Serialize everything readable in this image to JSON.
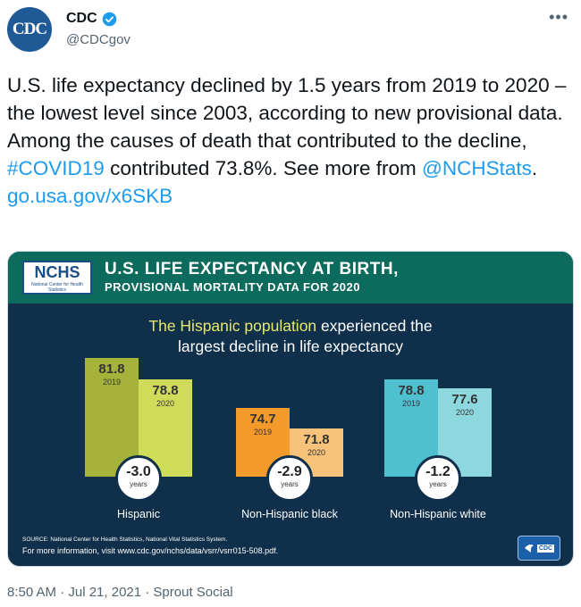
{
  "account": {
    "avatar_text": "CDC",
    "name": "CDC",
    "handle": "@CDCgov",
    "verified_icon": "verified-badge-icon",
    "more_icon": "more-options-icon"
  },
  "tweet": {
    "text_part1": "U.S. life expectancy declined by 1.5 years from 2019 to 2020 – the lowest level since 2003, according to new provisional data. Among the causes of death that contributed to the decline, ",
    "hashtag": "#COVID19",
    "text_part2": " contributed 73.8%. See more from ",
    "mention": "@NCHStats",
    "text_part3": ".",
    "url": "go.usa.gov/x6SKB"
  },
  "card": {
    "logo_text": "NCHS",
    "logo_subtext": "National Center for Health Statistics",
    "title_line1": "U.S. LIFE EXPECTANCY AT BIRTH,",
    "title_line2": "PROVISIONAL MORTALITY DATA FOR 2020",
    "headline_highlight": "The Hispanic population",
    "headline_rest1": " experienced the",
    "headline_line2": "largest decline in life expectancy",
    "source": "SOURCE: National Center for Health Statistics, National Vital Statistics System.",
    "more_info": "For more information, visit www.cdc.gov/nchs/data/vsrr/vsrr015-508.pdf.",
    "cdc_logo_text": "CDC"
  },
  "chart_data": {
    "type": "bar",
    "categories": [
      "Hispanic",
      "Non-Hispanic black",
      "Non-Hispanic white"
    ],
    "series": [
      {
        "name": "2019",
        "values": [
          81.8,
          74.7,
          78.8
        ]
      },
      {
        "name": "2020",
        "values": [
          78.8,
          71.8,
          77.6
        ]
      }
    ],
    "value_labels_2019": [
      "81.8",
      "74.7",
      "78.8"
    ],
    "value_labels_2020": [
      "78.8",
      "71.8",
      "77.6"
    ],
    "year_labels": [
      "2019",
      "2020"
    ],
    "changes": [
      "-3.0",
      "-2.9",
      "-1.2"
    ],
    "change_unit": "years",
    "ylim": [
      65,
      84
    ],
    "colors": {
      "Hispanic": [
        "#a6b33a",
        "#cfdc5a"
      ],
      "Non-Hispanic black": [
        "#f39a2a",
        "#f7c27a"
      ],
      "Non-Hispanic white": [
        "#4fc0cf",
        "#8dd8df"
      ]
    }
  },
  "footer": {
    "timestamp": "8:50 AM · Jul 21, 2021 · Sprout Social"
  }
}
